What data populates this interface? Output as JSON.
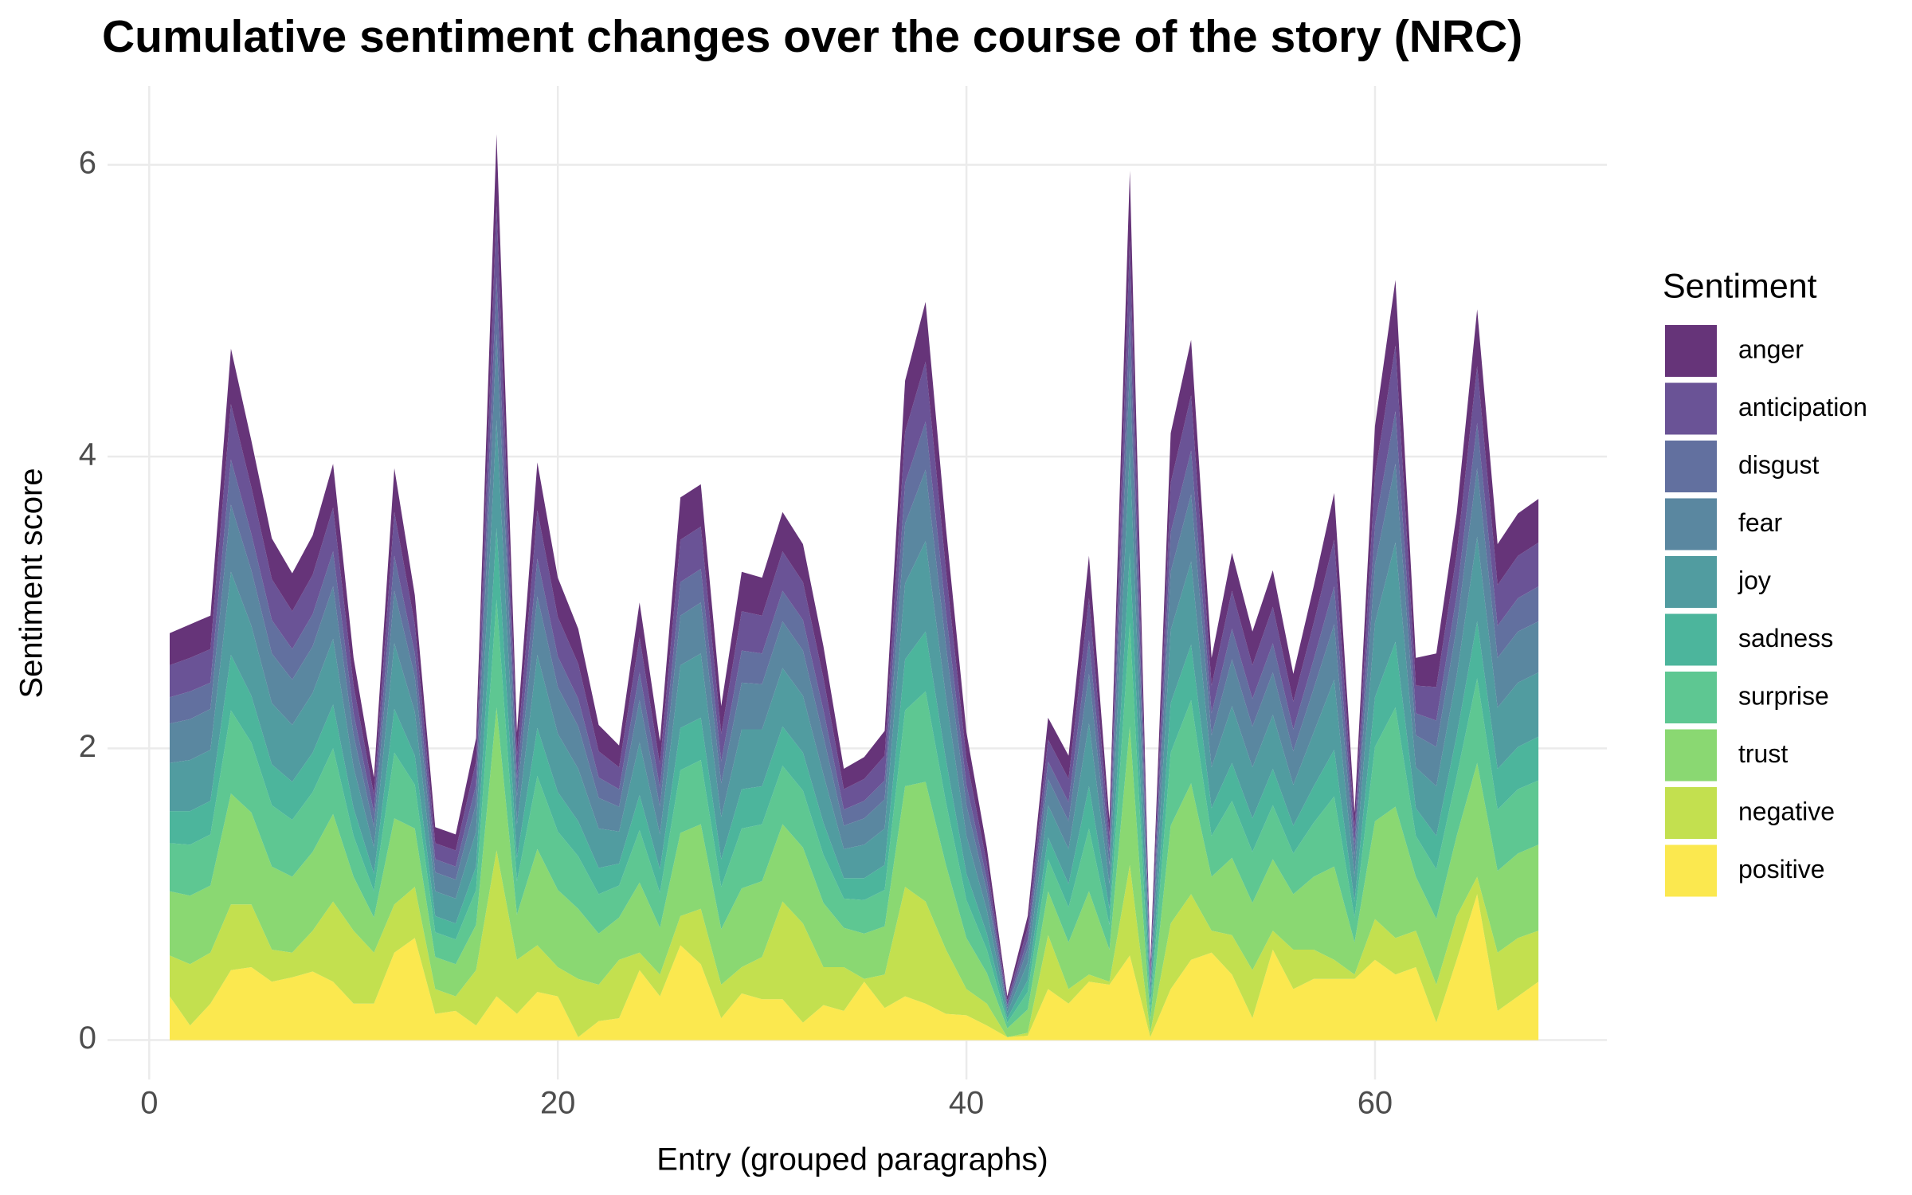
{
  "chart_data": {
    "type": "stacked_area",
    "title": "Cumulative sentiment changes over the course of the story (NRC)",
    "x_label": "Entry (grouped paragraphs)",
    "y_label": "Sentiment score",
    "legend_title": "Sentiment",
    "legend_position": "right",
    "grid": true,
    "xlim": [
      -2.04,
      71.35
    ],
    "xticks": [
      0,
      20,
      40,
      60
    ],
    "ylim": [
      -0.27,
      6.54
    ],
    "yticks": [
      0,
      2,
      4,
      6
    ],
    "x": [
      1,
      2,
      3,
      4,
      5,
      6,
      7,
      8,
      9,
      10,
      11,
      12,
      13,
      14,
      15,
      16,
      17,
      18,
      19,
      20,
      21,
      22,
      23,
      24,
      25,
      26,
      27,
      28,
      29,
      30,
      31,
      32,
      33,
      34,
      35,
      36,
      37,
      38,
      39,
      40,
      41,
      42,
      43,
      44,
      45,
      46,
      47,
      48,
      49,
      50,
      51,
      52,
      53,
      54,
      55,
      56,
      57,
      58,
      59,
      60,
      61,
      62,
      63,
      64,
      65,
      66,
      67,
      68
    ],
    "series": [
      {
        "name": "anger",
        "color": "#663479",
        "values": [
          0.22,
          0.23,
          0.23,
          0.38,
          0.32,
          0.28,
          0.26,
          0.27,
          0.3,
          0.19,
          0.12,
          0.3,
          0.2,
          0.11,
          0.11,
          0.16,
          0.49,
          0.16,
          0.33,
          0.27,
          0.24,
          0.18,
          0.15,
          0.24,
          0.16,
          0.29,
          0.29,
          0.19,
          0.27,
          0.26,
          0.27,
          0.26,
          0.22,
          0.14,
          0.15,
          0.17,
          0.35,
          0.41,
          0.29,
          0.18,
          0.11,
          0.03,
          0.08,
          0.15,
          0.16,
          0.29,
          0.11,
          0.48,
          0.05,
          0.34,
          0.38,
          0.19,
          0.26,
          0.23,
          0.25,
          0.19,
          0.25,
          0.32,
          0.11,
          0.34,
          0.45,
          0.19,
          0.23,
          0.28,
          0.39,
          0.28,
          0.29,
          0.3
        ]
      },
      {
        "name": "anticipation",
        "color": "#6a5396",
        "values": [
          0.22,
          0.23,
          0.23,
          0.38,
          0.32,
          0.28,
          0.26,
          0.27,
          0.3,
          0.19,
          0.12,
          0.3,
          0.2,
          0.11,
          0.11,
          0.16,
          0.49,
          0.16,
          0.33,
          0.27,
          0.24,
          0.18,
          0.15,
          0.24,
          0.16,
          0.29,
          0.29,
          0.19,
          0.27,
          0.26,
          0.27,
          0.26,
          0.22,
          0.14,
          0.15,
          0.17,
          0.35,
          0.41,
          0.29,
          0.18,
          0.11,
          0.03,
          0.08,
          0.15,
          0.16,
          0.29,
          0.11,
          0.48,
          0.05,
          0.34,
          0.38,
          0.19,
          0.26,
          0.23,
          0.25,
          0.19,
          0.25,
          0.32,
          0.11,
          0.34,
          0.45,
          0.19,
          0.23,
          0.28,
          0.39,
          0.28,
          0.29,
          0.3
        ]
      },
      {
        "name": "disgust",
        "color": "#62709f",
        "values": [
          0.18,
          0.19,
          0.18,
          0.31,
          0.25,
          0.23,
          0.21,
          0.22,
          0.24,
          0.15,
          0.1,
          0.24,
          0.16,
          0.09,
          0.09,
          0.13,
          0.39,
          0.12,
          0.26,
          0.21,
          0.19,
          0.14,
          0.12,
          0.19,
          0.13,
          0.23,
          0.23,
          0.15,
          0.22,
          0.21,
          0.21,
          0.21,
          0.18,
          0.11,
          0.12,
          0.13,
          0.28,
          0.33,
          0.23,
          0.14,
          0.08,
          0.02,
          0.06,
          0.12,
          0.13,
          0.23,
          0.09,
          0.38,
          0.04,
          0.27,
          0.3,
          0.15,
          0.21,
          0.19,
          0.2,
          0.15,
          0.2,
          0.26,
          0.09,
          0.27,
          0.36,
          0.15,
          0.18,
          0.22,
          0.31,
          0.22,
          0.23,
          0.24
        ]
      },
      {
        "name": "fear",
        "color": "#5a87a0",
        "values": [
          0.27,
          0.28,
          0.28,
          0.46,
          0.38,
          0.34,
          0.31,
          0.32,
          0.36,
          0.22,
          0.14,
          0.36,
          0.24,
          0.13,
          0.13,
          0.19,
          0.59,
          0.19,
          0.4,
          0.32,
          0.29,
          0.21,
          0.17,
          0.29,
          0.19,
          0.34,
          0.35,
          0.23,
          0.32,
          0.31,
          0.32,
          0.31,
          0.26,
          0.16,
          0.18,
          0.2,
          0.41,
          0.49,
          0.35,
          0.21,
          0.13,
          0.03,
          0.1,
          0.18,
          0.19,
          0.34,
          0.13,
          0.57,
          0.05,
          0.4,
          0.46,
          0.22,
          0.32,
          0.28,
          0.29,
          0.23,
          0.3,
          0.38,
          0.13,
          0.4,
          0.54,
          0.22,
          0.27,
          0.33,
          0.47,
          0.34,
          0.35,
          0.35
        ]
      },
      {
        "name": "joy",
        "color": "#519ca0",
        "values": [
          0.33,
          0.35,
          0.35,
          0.57,
          0.48,
          0.42,
          0.39,
          0.41,
          0.45,
          0.28,
          0.18,
          0.45,
          0.3,
          0.17,
          0.17,
          0.24,
          0.74,
          0.23,
          0.5,
          0.4,
          0.36,
          0.27,
          0.22,
          0.36,
          0.24,
          0.43,
          0.44,
          0.29,
          0.41,
          0.39,
          0.4,
          0.39,
          0.33,
          0.2,
          0.23,
          0.25,
          0.52,
          0.62,
          0.43,
          0.26,
          0.16,
          0.04,
          0.12,
          0.22,
          0.24,
          0.43,
          0.17,
          0.71,
          0.07,
          0.5,
          0.57,
          0.28,
          0.39,
          0.35,
          0.37,
          0.28,
          0.37,
          0.48,
          0.17,
          0.51,
          0.68,
          0.28,
          0.34,
          0.41,
          0.58,
          0.42,
          0.44,
          0.44
        ]
      },
      {
        "name": "sadness",
        "color": "#4cb59c",
        "values": [
          0.22,
          0.23,
          0.23,
          0.38,
          0.32,
          0.28,
          0.26,
          0.27,
          0.3,
          0.19,
          0.12,
          0.3,
          0.2,
          0.11,
          0.11,
          0.16,
          0.49,
          0.16,
          0.33,
          0.27,
          0.24,
          0.18,
          0.15,
          0.24,
          0.16,
          0.29,
          0.29,
          0.19,
          0.27,
          0.26,
          0.27,
          0.26,
          0.22,
          0.14,
          0.15,
          0.17,
          0.35,
          0.41,
          0.29,
          0.18,
          0.11,
          0.03,
          0.08,
          0.15,
          0.16,
          0.29,
          0.11,
          0.48,
          0.05,
          0.34,
          0.38,
          0.19,
          0.26,
          0.23,
          0.25,
          0.19,
          0.25,
          0.32,
          0.11,
          0.34,
          0.45,
          0.19,
          0.23,
          0.28,
          0.39,
          0.28,
          0.29,
          0.3
        ]
      },
      {
        "name": "surprise",
        "color": "#5ec792",
        "values": [
          0.33,
          0.35,
          0.35,
          0.57,
          0.48,
          0.42,
          0.39,
          0.41,
          0.45,
          0.28,
          0.18,
          0.45,
          0.3,
          0.17,
          0.17,
          0.24,
          0.74,
          0.23,
          0.5,
          0.4,
          0.36,
          0.27,
          0.22,
          0.36,
          0.24,
          0.43,
          0.44,
          0.29,
          0.41,
          0.39,
          0.4,
          0.39,
          0.33,
          0.2,
          0.23,
          0.25,
          0.52,
          0.62,
          0.43,
          0.26,
          0.16,
          0.04,
          0.12,
          0.22,
          0.24,
          0.43,
          0.17,
          0.71,
          0.07,
          0.5,
          0.57,
          0.28,
          0.39,
          0.35,
          0.37,
          0.28,
          0.37,
          0.48,
          0.17,
          0.51,
          0.68,
          0.28,
          0.34,
          0.41,
          0.58,
          0.42,
          0.44,
          0.44
        ]
      },
      {
        "name": "trust",
        "color": "#8ad872",
        "values": [
          0.44,
          0.47,
          0.46,
          0.76,
          0.63,
          0.57,
          0.52,
          0.54,
          0.6,
          0.37,
          0.24,
          0.59,
          0.4,
          0.22,
          0.22,
          0.31,
          0.98,
          0.31,
          0.66,
          0.53,
          0.48,
          0.35,
          0.29,
          0.48,
          0.32,
          0.57,
          0.58,
          0.38,
          0.54,
          0.52,
          0.53,
          0.52,
          0.44,
          0.27,
          0.31,
          0.33,
          0.69,
          0.82,
          0.58,
          0.35,
          0.21,
          0.06,
          0.16,
          0.3,
          0.32,
          0.57,
          0.22,
          0.95,
          0.09,
          0.67,
          0.76,
          0.37,
          0.53,
          0.46,
          0.49,
          0.38,
          0.5,
          0.64,
          0.22,
          0.67,
          0.9,
          0.37,
          0.45,
          0.55,
          0.78,
          0.56,
          0.58,
          0.59
        ]
      },
      {
        "name": "negative",
        "color": "#c3e04f",
        "values": [
          0.28,
          0.42,
          0.35,
          0.45,
          0.43,
          0.22,
          0.17,
          0.28,
          0.55,
          0.5,
          0.35,
          0.33,
          0.35,
          0.17,
          0.1,
          0.38,
          1.0,
          0.37,
          0.32,
          0.2,
          0.4,
          0.25,
          0.4,
          0.12,
          0.15,
          0.2,
          0.38,
          0.23,
          0.18,
          0.29,
          0.67,
          0.68,
          0.26,
          0.3,
          0.02,
          0.23,
          0.75,
          0.7,
          0.44,
          0.18,
          0.15,
          0,
          0.02,
          0.37,
          0.1,
          0.05,
          0.02,
          0.62,
          0.03,
          0.45,
          0.45,
          0.15,
          0.27,
          0.33,
          0.13,
          0.27,
          0.2,
          0.13,
          0.03,
          0.28,
          0.25,
          0.25,
          0.26,
          0.3,
          0.12,
          0.4,
          0.4,
          0.35
        ]
      },
      {
        "name": "positive",
        "color": "#fbe84f",
        "values": [
          0.3,
          0.1,
          0.25,
          0.48,
          0.5,
          0.4,
          0.43,
          0.47,
          0.4,
          0.25,
          0.25,
          0.6,
          0.7,
          0.18,
          0.2,
          0.1,
          0.3,
          0.18,
          0.33,
          0.3,
          0.02,
          0.13,
          0.15,
          0.48,
          0.3,
          0.65,
          0.52,
          0.15,
          0.32,
          0.28,
          0.28,
          0.12,
          0.24,
          0.2,
          0.4,
          0.22,
          0.3,
          0.25,
          0.18,
          0.17,
          0.1,
          0.02,
          0.03,
          0.35,
          0.25,
          0.4,
          0.38,
          0.58,
          0.02,
          0.35,
          0.55,
          0.6,
          0.45,
          0.15,
          0.62,
          0.35,
          0.42,
          0.42,
          0.42,
          0.55,
          0.45,
          0.5,
          0.12,
          0.55,
          1.0,
          0.2,
          0.3,
          0.4
        ]
      }
    ]
  }
}
